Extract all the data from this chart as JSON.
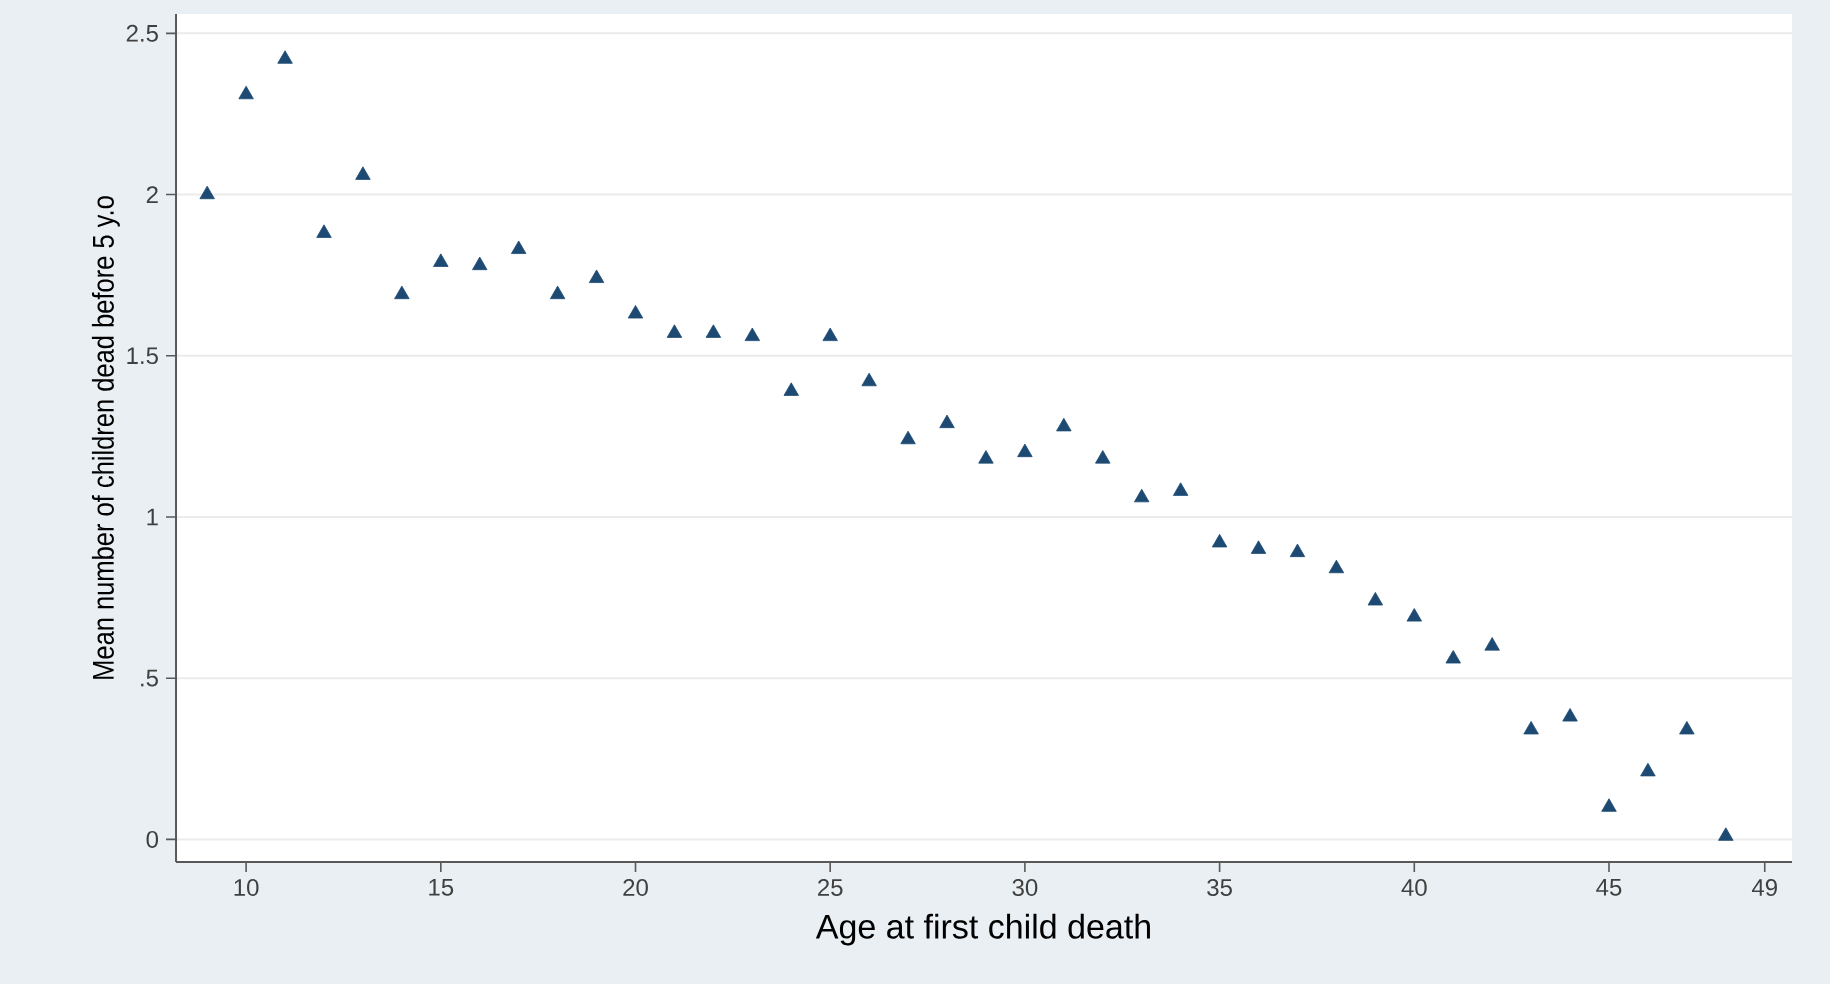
{
  "chart_data": {
    "type": "scatter",
    "xlabel": "Age at first child death",
    "ylabel": "Mean number of children dead before 5 y.o",
    "series": [
      {
        "color": "#1d4a72",
        "x": [
          9,
          10,
          11,
          12,
          13,
          14,
          15,
          16,
          17,
          18,
          19,
          20,
          21,
          22,
          23,
          24,
          25,
          26,
          27,
          28,
          29,
          30,
          31,
          32,
          33,
          34,
          35,
          36,
          37,
          38,
          39,
          40,
          41,
          42,
          43,
          44,
          45,
          46,
          47,
          48
        ],
        "values": [
          2.0,
          2.31,
          2.42,
          1.88,
          2.06,
          1.69,
          1.79,
          1.78,
          1.83,
          1.69,
          1.74,
          1.63,
          1.57,
          1.57,
          1.56,
          1.39,
          1.56,
          1.42,
          1.24,
          1.29,
          1.18,
          1.2,
          1.28,
          1.18,
          1.06,
          1.08,
          0.92,
          0.9,
          0.89,
          0.84,
          0.74,
          0.69,
          0.56,
          0.6,
          0.34,
          0.38,
          0.1,
          0.21,
          0.34,
          0.01
        ]
      }
    ],
    "xlim": [
      8.2,
      49.7
    ],
    "ylim": [
      -0.07,
      2.56
    ],
    "xticks": [
      10,
      15,
      20,
      25,
      30,
      35,
      40,
      45,
      49
    ],
    "yticks": [
      0,
      {
        "value": 0.5,
        "label": ".5"
      },
      1,
      1.5,
      2,
      2.5
    ],
    "grid": "y",
    "marker": "triangle",
    "legend": false
  }
}
